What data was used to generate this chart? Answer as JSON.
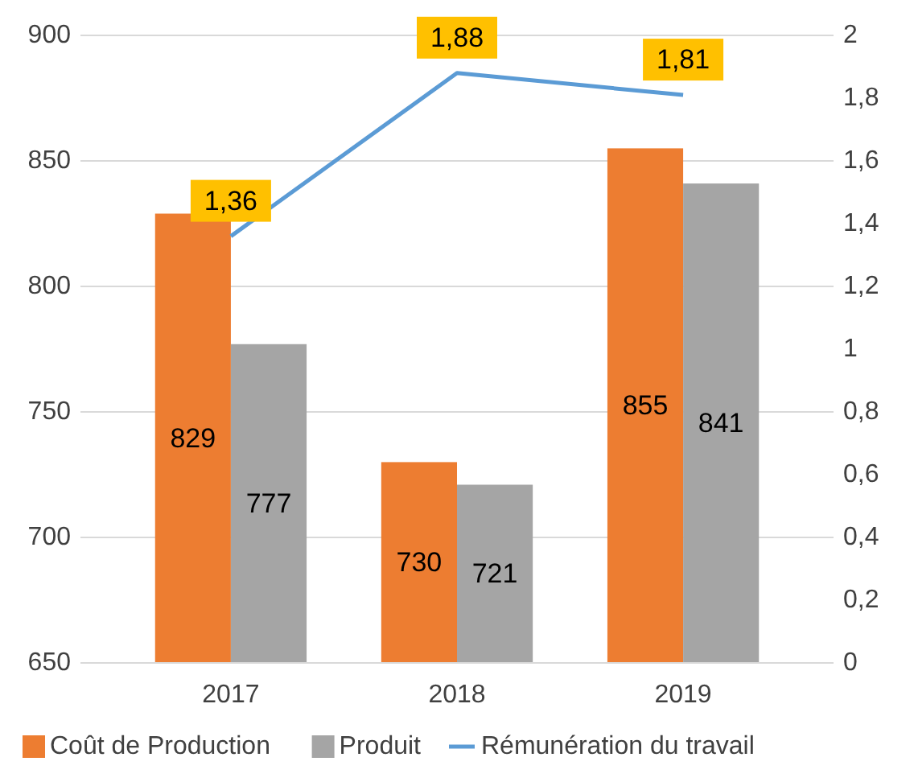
{
  "chart_data": {
    "type": "bar",
    "categories": [
      "2017",
      "2018",
      "2019"
    ],
    "series": [
      {
        "name": "Coût de Production",
        "color": "#ed7d31",
        "values": [
          829,
          730,
          855
        ]
      },
      {
        "name": "Produit",
        "color": "#a5a5a5",
        "values": [
          777,
          721,
          841
        ]
      },
      {
        "name": "Rémunération du travail",
        "type": "line",
        "axis": "y2",
        "color": "#5b9bd5",
        "values": [
          1.36,
          1.88,
          1.81
        ],
        "value_labels": [
          "1,36",
          "1,88",
          "1,81"
        ]
      }
    ],
    "ylim": [
      650,
      900
    ],
    "yticks": [
      650,
      700,
      750,
      800,
      850,
      900
    ],
    "y2lim": [
      0,
      2
    ],
    "y2ticks": [
      0,
      {
        "value": 0.2,
        "label": "0,2"
      },
      {
        "value": 0.4,
        "label": "0,4"
      },
      {
        "value": 0.6,
        "label": "0,6"
      },
      {
        "value": 0.8,
        "label": "0,8"
      },
      1,
      {
        "value": 1.2,
        "label": "1,2"
      },
      {
        "value": 1.4,
        "label": "1,4"
      },
      {
        "value": 1.6,
        "label": "1,6"
      },
      {
        "value": 1.8,
        "label": "1,8"
      },
      2
    ],
    "data_labels": true,
    "grid": "y",
    "legend": "bottom"
  }
}
